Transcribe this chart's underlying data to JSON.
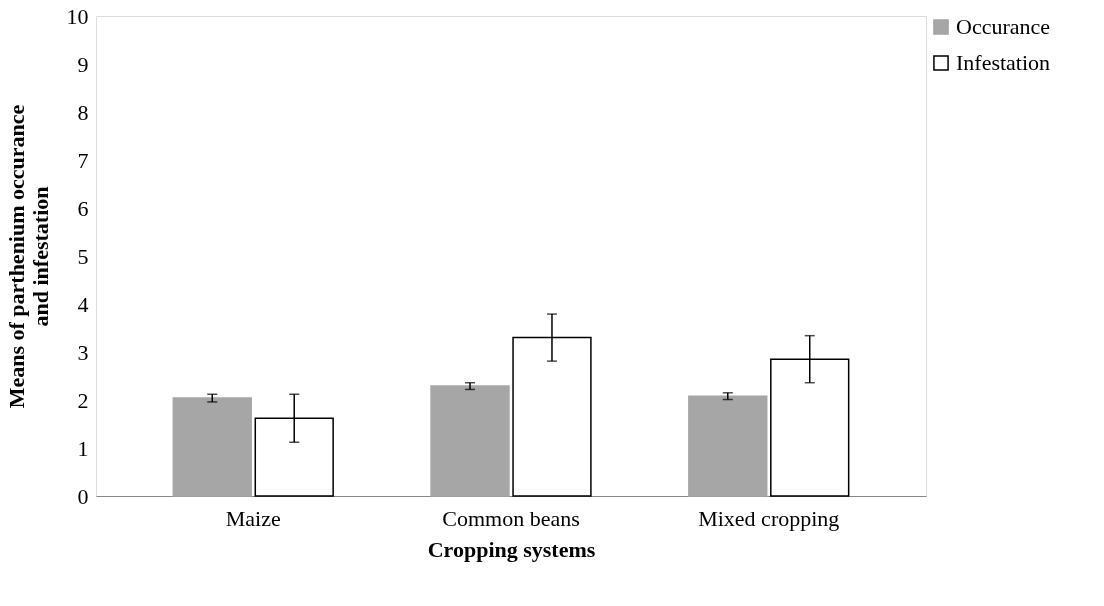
{
  "chart_data": {
    "type": "bar",
    "xlabel": "Cropping systems",
    "ylabel": "Means of parthenium occurance\nand infestation",
    "categories": [
      "Maize",
      "Common beans",
      "Mixed cropping"
    ],
    "series": [
      {
        "name": "Occurance",
        "color": "#a6a6a6",
        "values": [
          2.04,
          2.29,
          2.08
        ],
        "errors": [
          0.08,
          0.07,
          0.07
        ]
      },
      {
        "name": "Infestation",
        "color": "#ffffff",
        "values": [
          1.62,
          3.3,
          2.85
        ],
        "errors": [
          0.5,
          0.49,
          0.49
        ]
      }
    ],
    "ylim": [
      0,
      10
    ],
    "yticks": [
      0,
      1,
      2,
      3,
      4,
      5,
      6,
      7,
      8,
      9,
      10
    ],
    "grid": false,
    "legend": "right"
  }
}
